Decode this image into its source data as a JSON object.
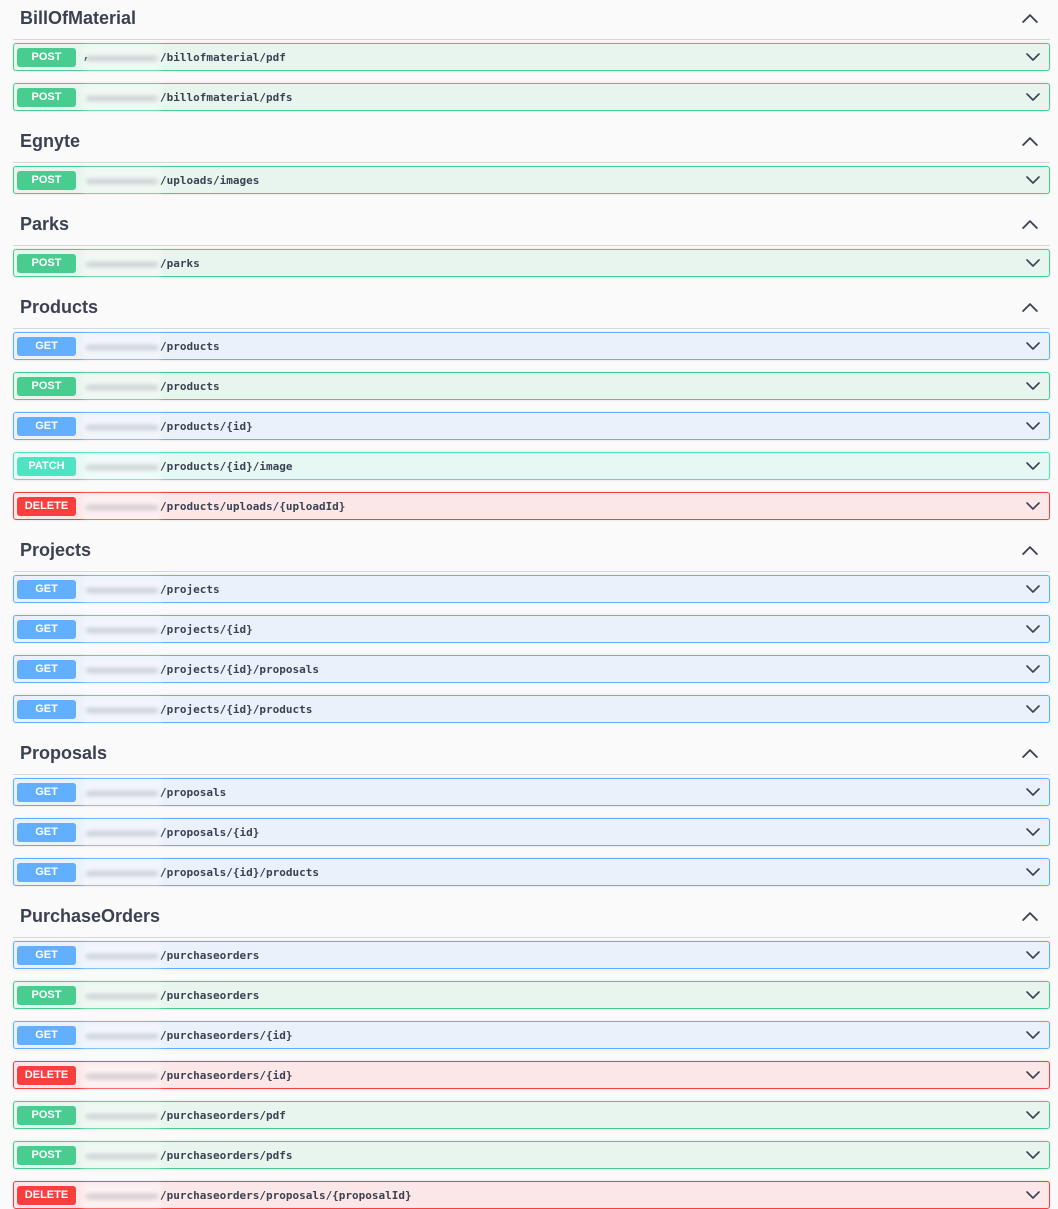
{
  "sections": [
    {
      "title": "BillOfMaterial",
      "collapse_icon": "chevron-up-icon",
      "operations": [
        {
          "method": "POST",
          "path": "/billofmaterial/pdf",
          "class": "post",
          "prefix_char": ","
        },
        {
          "method": "POST",
          "path": "/billofmaterial/pdfs",
          "class": "post"
        }
      ]
    },
    {
      "title": "Egnyte",
      "collapse_icon": "chevron-up-icon",
      "operations": [
        {
          "method": "POST",
          "path": "/uploads/images",
          "class": "post"
        }
      ]
    },
    {
      "title": "Parks",
      "collapse_icon": "chevron-up-icon",
      "operations": [
        {
          "method": "POST",
          "path": "/parks",
          "class": "post"
        }
      ]
    },
    {
      "title": "Products",
      "collapse_icon": "chevron-up-icon",
      "operations": [
        {
          "method": "GET",
          "path": "/products",
          "class": "get"
        },
        {
          "method": "POST",
          "path": "/products",
          "class": "post"
        },
        {
          "method": "GET",
          "path": "/products/{id}",
          "class": "get"
        },
        {
          "method": "PATCH",
          "path": "/products/{id}/image",
          "class": "patch"
        },
        {
          "method": "DELETE",
          "path": "/products/uploads/{uploadId}",
          "class": "delete"
        }
      ]
    },
    {
      "title": "Projects",
      "collapse_icon": "chevron-up-icon",
      "operations": [
        {
          "method": "GET",
          "path": "/projects",
          "class": "get"
        },
        {
          "method": "GET",
          "path": "/projects/{id}",
          "class": "get"
        },
        {
          "method": "GET",
          "path": "/projects/{id}/proposals",
          "class": "get"
        },
        {
          "method": "GET",
          "path": "/projects/{id}/products",
          "class": "get"
        }
      ]
    },
    {
      "title": "Proposals",
      "collapse_icon": "chevron-up-icon",
      "operations": [
        {
          "method": "GET",
          "path": "/proposals",
          "class": "get"
        },
        {
          "method": "GET",
          "path": "/proposals/{id}",
          "class": "get"
        },
        {
          "method": "GET",
          "path": "/proposals/{id}/products",
          "class": "get"
        }
      ]
    },
    {
      "title": "PurchaseOrders",
      "collapse_icon": "chevron-up-icon",
      "operations": [
        {
          "method": "GET",
          "path": "/purchaseorders",
          "class": "get"
        },
        {
          "method": "POST",
          "path": "/purchaseorders",
          "class": "post"
        },
        {
          "method": "GET",
          "path": "/purchaseorders/{id}",
          "class": "get"
        },
        {
          "method": "DELETE",
          "path": "/purchaseorders/{id}",
          "class": "delete"
        },
        {
          "method": "POST",
          "path": "/purchaseorders/pdf",
          "class": "post"
        },
        {
          "method": "POST",
          "path": "/purchaseorders/pdfs",
          "class": "post"
        },
        {
          "method": "DELETE",
          "path": "/purchaseorders/proposals/{proposalId}",
          "class": "delete"
        }
      ]
    }
  ],
  "expand_icon": "chevron-down-icon",
  "colors": {
    "get": "#61affe",
    "post": "#49cc90",
    "patch": "#50e3c2",
    "delete": "#f93e3e",
    "text": "#3b4151"
  }
}
